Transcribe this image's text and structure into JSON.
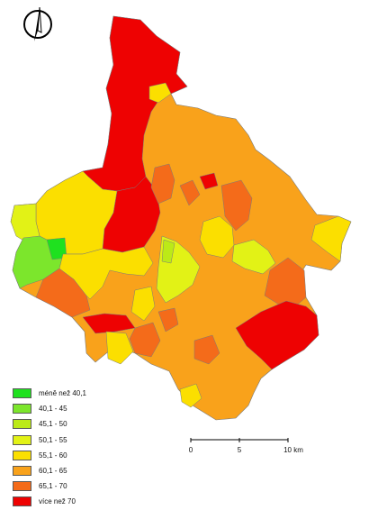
{
  "map": {
    "north_arrow_icon": "north-arrow-icon",
    "colors": {
      "c1": "#1fe11f",
      "c2": "#7ce62c",
      "c3": "#bcea17",
      "c4": "#e2f216",
      "c5": "#fbdf00",
      "c6": "#f9a21b",
      "c7": "#f46b1a",
      "c8": "#ee0202",
      "outline": "#7a7a7a"
    },
    "legend": [
      {
        "label": "méně než 40,1",
        "color": "#1fe11f"
      },
      {
        "label": "40,1 - 45",
        "color": "#7ce62c"
      },
      {
        "label": "45,1 - 50",
        "color": "#bcea17"
      },
      {
        "label": "50,1 - 55",
        "color": "#e2f216"
      },
      {
        "label": "55,1 - 60",
        "color": "#fbdf00"
      },
      {
        "label": "60,1 - 65",
        "color": "#f9a21b"
      },
      {
        "label": "65,1 - 70",
        "color": "#f46b1a"
      },
      {
        "label": "více než 70",
        "color": "#ee0202"
      }
    ],
    "scale": {
      "tick_0": "0",
      "tick_5": "5",
      "tick_10": "10 km"
    }
  }
}
